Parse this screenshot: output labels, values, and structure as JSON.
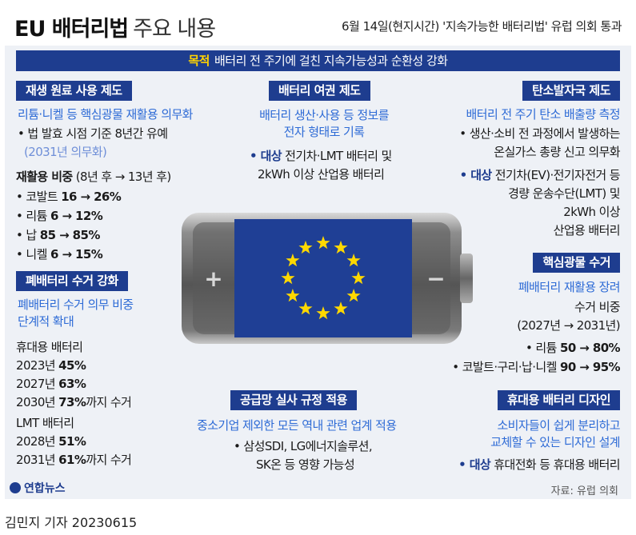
{
  "title": {
    "main": "EU 배터리법",
    "sub": "주요 내용"
  },
  "headline": "6월 14일(현지시간) '지속가능한 배터리법' 유럽 의회 통과",
  "purpose": {
    "label": "목적",
    "text": "배터리 전 주기에 걸친 지속가능성과 순환성 강화"
  },
  "recycled": {
    "header": "재생 원료 사용 제도",
    "subtitle": "리튬·니켈 등 핵심광물 재활용 의무화",
    "note1": "• 법 발효 시점 기준 8년간 유예",
    "note2": "(2031년 의무화)",
    "ratio_label": "재활용 비중",
    "ratio_period": "(8년 후 → 13년 후)",
    "items": [
      {
        "name": "• 코발트 ",
        "value": "16 → 26%"
      },
      {
        "name": "• 리튬 ",
        "value": "6 → 12%"
      },
      {
        "name": "• 납 ",
        "value": "85 → 85%"
      },
      {
        "name": "• 니켈 ",
        "value": "6 → 15%"
      }
    ]
  },
  "waste": {
    "header": "폐배터리 수거 강화",
    "subtitle1": "폐배터리 수거 의무 비중",
    "subtitle2": "단계적 확대",
    "portable_label": "휴대용 배터리",
    "portable": [
      {
        "year": "2023년 ",
        "value": "45%",
        "suffix": ""
      },
      {
        "year": "2027년 ",
        "value": "63%",
        "suffix": ""
      },
      {
        "year": "2030년 ",
        "value": "73%",
        "suffix": "까지 수거"
      }
    ],
    "lmt_label": "LMT 배터리",
    "lmt": [
      {
        "year": "2028년 ",
        "value": "51%",
        "suffix": ""
      },
      {
        "year": "2031년 ",
        "value": "61%",
        "suffix": "까지 수거"
      }
    ]
  },
  "passport": {
    "header": "배터리 여권 제도",
    "subtitle1": "배터리 생산·사용 등 정보를",
    "subtitle2": "전자 형태로 기록",
    "target_label": "• 대상",
    "target_text1": " 전기차·LMT 배터리 및",
    "target_text2": "2kWh 이상 산업용 배터리"
  },
  "carbon": {
    "header": "탄소발자국 제도",
    "subtitle": "배터리 전 주기 탄소 배출량 측정",
    "line1": "• 생산·소비 전 과정에서 발생하는",
    "line2": "온실가스 총량 신고 의무화",
    "target_label": "• 대상",
    "target1": " 전기차(EV)·전기자전거 등",
    "target2": "경량 운송수단(LMT) 및",
    "target3": "2kWh 이상",
    "target4": "산업용 배터리"
  },
  "minerals": {
    "header": "핵심광물 수거",
    "subtitle": "폐배터리 재활용 장려",
    "ratio_label": "수거 비중",
    "period": "(2027년 → 2031년)",
    "item1_name": "• 리튬 ",
    "item1_value": "50 → 80%",
    "item2_name": "• 코발트·구리·납·니켈 ",
    "item2_value": "90 → 95%"
  },
  "supply": {
    "header": "공급망 실사 규정 적용",
    "subtitle": "중소기업 제외한 모든 역내 관련 업계 적용",
    "line1": "• 삼성SDI, LG에너지솔루션,",
    "line2": "SK온 등 영향 가능성"
  },
  "design": {
    "header": "휴대용 배터리 디자인",
    "subtitle1": "소비자들이 쉽게 분리하고",
    "subtitle2": "교체할 수 있는 디자인 설계",
    "target_label": "• 대상",
    "target_text": " 휴대전화 등 휴대용 배터리"
  },
  "battery": {
    "plus": "+",
    "minus": "−"
  },
  "logo": "연합뉴스",
  "source": "자료: 유럽 의회",
  "byline": "김민지 기자  20230615",
  "colors": {
    "navy": "#1e3d8f",
    "accent_blue": "#2e6bd6",
    "eu_blue": "#1f3f95",
    "eu_star": "#ffd800",
    "panel": "#eef1f6"
  }
}
